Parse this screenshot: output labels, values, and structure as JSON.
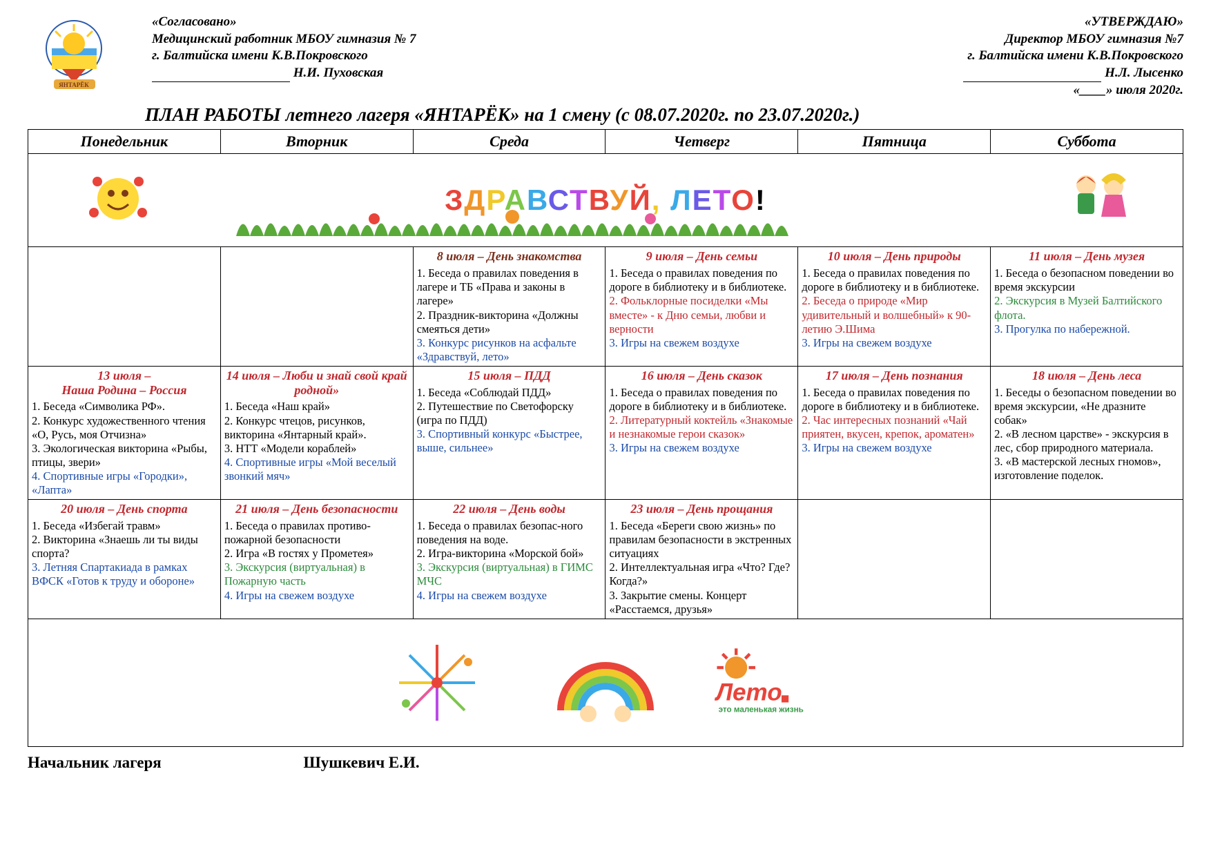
{
  "colors": {
    "red": "#c0272d",
    "blue": "#1a4aa8",
    "green": "#2a8a3a",
    "black": "#000000",
    "brown": "#7a2e1a"
  },
  "fonts": {
    "body": "Georgia, 'Times New Roman', serif",
    "banner": "Arial, sans-serif"
  },
  "header": {
    "left": {
      "l1": "«Согласовано»",
      "l2": "Медицинский работник МБОУ гимназия № 7",
      "l3": "г. Балтийска имени К.В.Покровского",
      "name": "Н.И. Пуховская"
    },
    "right": {
      "l1": "«УТВЕРЖДАЮ»",
      "l2": "Директор МБОУ гимназия №7",
      "l3": "г. Балтийска имени К.В.Покровского",
      "name": "Н.Л. Лысенко",
      "date": "«____» июля 2020г."
    }
  },
  "title": "ПЛАН РАБОТЫ  летнего лагеря «ЯНТАРЁК» на 1 смену  (с 08.07.2020г. по 23.07.2020г.)",
  "days": [
    "Понедельник",
    "Вторник",
    "Среда",
    "Четверг",
    "Пятница",
    "Суббота"
  ],
  "banner": "ЗДРАВСТВУЙ, ЛЕТО!",
  "grid": [
    [
      null,
      null,
      {
        "title": "8 июля – День знакомства",
        "tcolor": "brown",
        "items": [
          {
            "t": "1. Беседа о правилах поведения в лагере и ТБ «Права и законы в лагере»",
            "c": "black"
          },
          {
            "t": "2. Праздник-викторина «Должны смеяться дети»",
            "c": "black"
          },
          {
            "t": "3. Конкурс рисунков на асфальте «Здравствуй, лето»",
            "c": "blue"
          }
        ]
      },
      {
        "title": "9 июля – День семьи",
        "tcolor": "red",
        "items": [
          {
            "t": "1. Беседа о правилах поведения по дороге в библиотеку и в библиотеке.",
            "c": "black"
          },
          {
            "t": "2. Фольклорные посиделки «Мы вместе» - к Дню семьи, любви и верности",
            "c": "red"
          },
          {
            "t": "3. Игры на свежем воздухе",
            "c": "blue"
          }
        ]
      },
      {
        "title": "10 июля – День природы",
        "tcolor": "red",
        "items": [
          {
            "t": "1. Беседа о правилах поведения по дороге в библиотеку и в библиотеке.",
            "c": "black"
          },
          {
            "t": "2. Беседа о природе «Мир удивительный и волшебный» к 90-летию Э.Шима",
            "c": "red"
          },
          {
            "t": "3. Игры на свежем воздухе",
            "c": "blue"
          }
        ]
      },
      {
        "title": "11 июля – День музея",
        "tcolor": "red",
        "items": [
          {
            "t": "1. Беседа о безопасном поведении во время экскурсии",
            "c": "black"
          },
          {
            "t": "2. Экскурсия в Музей Балтийского флота.",
            "c": "green"
          },
          {
            "t": "3. Прогулка по набережной.",
            "c": "blue"
          }
        ]
      }
    ],
    [
      {
        "title": "13 июля –\nНаша Родина – Россия",
        "tcolor": "red",
        "items": [
          {
            "t": "1. Беседа «Символика РФ».",
            "c": "black"
          },
          {
            "t": "2. Конкурс художественного чтения «О, Русь, моя Отчизна»",
            "c": "black"
          },
          {
            "t": "3. Экологическая викторина «Рыбы, птицы, звери»",
            "c": "black"
          },
          {
            "t": "4. Спортивные игры «Городки», «Лапта»",
            "c": "blue"
          }
        ]
      },
      {
        "title": "14 июля – Люби и знай свой край родной»",
        "tcolor": "red",
        "items": [
          {
            "t": "1. Беседа «Наш край»",
            "c": "black"
          },
          {
            "t": "2. Конкурс чтецов, рисунков, викторина «Янтарный край».",
            "c": "black"
          },
          {
            "t": "3. НТТ «Модели кораблей»",
            "c": "black"
          },
          {
            "t": "4. Спортивные игры «Мой веселый звонкий мяч»",
            "c": "blue"
          }
        ]
      },
      {
        "title": "15 июля – ПДД",
        "tcolor": "red",
        "items": [
          {
            "t": "1. Беседа «Соблюдай ПДД»",
            "c": "black"
          },
          {
            "t": "2. Путешествие по Светофорску (игра по ПДД)",
            "c": "black"
          },
          {
            "t": "3. Спортивный конкурс «Быстрее, выше, сильнее»",
            "c": "blue"
          }
        ]
      },
      {
        "title": "16 июля – День сказок",
        "tcolor": "red",
        "items": [
          {
            "t": "1. Беседа о правилах поведения по дороге в библиотеку и в библиотеке.",
            "c": "black"
          },
          {
            "t": "2. Литературный коктейль «Знакомые и незнакомые герои сказок»",
            "c": "red"
          },
          {
            "t": "3. Игры на свежем воздухе",
            "c": "blue"
          }
        ]
      },
      {
        "title": "17 июля – День познания",
        "tcolor": "red",
        "items": [
          {
            "t": "1. Беседа о правилах поведения по дороге в библиотеку и в библиотеке.",
            "c": "black"
          },
          {
            "t": "2. Час интересных познаний «Чай приятен, вкусен, крепок, ароматен»",
            "c": "red"
          },
          {
            "t": "3. Игры на свежем воздухе",
            "c": "blue"
          }
        ]
      },
      {
        "title": "18 июля – День леса",
        "tcolor": "red",
        "items": [
          {
            "t": "1. Беседы о безопасном поведении во время экскурсии, «Не дразните собак»",
            "c": "black"
          },
          {
            "t": "2. «В лесном царстве» - экскурсия в лес, сбор природного материала.",
            "c": "black"
          },
          {
            "t": "3. «В мастерской лесных гномов», изготовление поделок.",
            "c": "black"
          }
        ]
      }
    ],
    [
      {
        "title": "20 июля – День спорта",
        "tcolor": "red",
        "items": [
          {
            "t": "1. Беседа «Избегай травм»",
            "c": "black"
          },
          {
            "t": "2. Викторина «Знаешь ли ты виды спорта?",
            "c": "black"
          },
          {
            "t": "3. Летняя Спартакиада в рамках ВФСК «Готов к труду и обороне»",
            "c": "blue"
          }
        ]
      },
      {
        "title": "21 июля – День безопасности",
        "tcolor": "red",
        "items": [
          {
            "t": "1. Беседа о правилах противо-пожарной безопасности",
            "c": "black"
          },
          {
            "t": "2. Игра «В гостях у Прометея»",
            "c": "black"
          },
          {
            "t": "3. Экскурсия (виртуальная) в Пожарную часть",
            "c": "green"
          },
          {
            "t": "4. Игры на свежем воздухе",
            "c": "blue"
          }
        ]
      },
      {
        "title": "22 июля – День воды",
        "tcolor": "red",
        "items": [
          {
            "t": "1. Беседа о правилах безопас-ного поведения на воде.",
            "c": "black"
          },
          {
            "t": "2. Игра-викторина «Морской бой»",
            "c": "black"
          },
          {
            "t": "3. Экскурсия (виртуальная) в ГИМС МЧС",
            "c": "green"
          },
          {
            "t": "4. Игры на свежем воздухе",
            "c": "blue"
          }
        ]
      },
      {
        "title": "23 июля – День прощания",
        "tcolor": "red",
        "items": [
          {
            "t": "1. Беседа «Береги свою жизнь» по правилам безопасности в экстренных ситуациях",
            "c": "black"
          },
          {
            "t": "2. Интеллектуальная игра «Что? Где? Когда?»",
            "c": "black"
          },
          {
            "t": "3. Закрытие смены. Концерт «Расстаемся, друзья»",
            "c": "black"
          }
        ]
      },
      null,
      null
    ]
  ],
  "footer": {
    "role": "Начальник лагеря",
    "name": "Шушкевич Е.И."
  },
  "footer_caption": "это маленькая жизнь",
  "footer_label": "Лето"
}
